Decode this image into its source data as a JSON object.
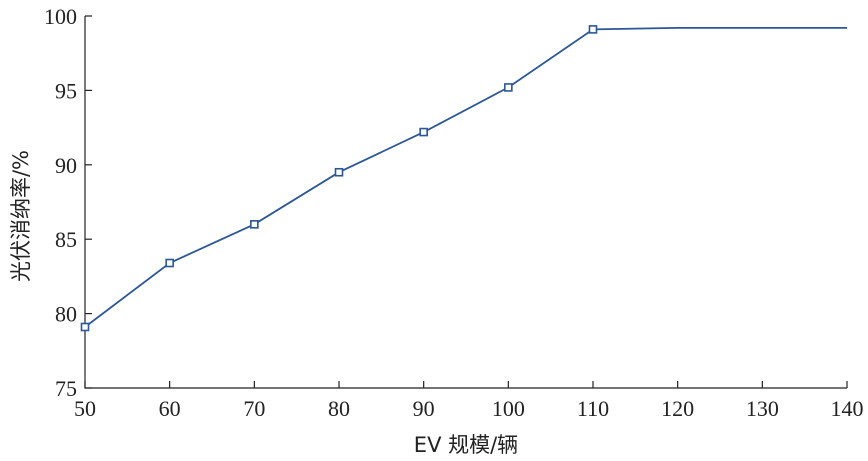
{
  "chart_data": {
    "type": "line",
    "title": "",
    "xlabel": "EV 规模/辆",
    "ylabel": "光伏消纳率/%",
    "xlim": [
      50,
      140
    ],
    "ylim": [
      75,
      100
    ],
    "xticks": [
      50,
      60,
      70,
      80,
      90,
      100,
      110,
      120,
      130,
      140
    ],
    "yticks": [
      75,
      80,
      85,
      90,
      95,
      100
    ],
    "grid": false,
    "series": [
      {
        "color": "#2b5797",
        "x": [
          50,
          60,
          70,
          80,
          90,
          100,
          110,
          120,
          140
        ],
        "y": [
          79.1,
          83.4,
          86.0,
          89.5,
          92.2,
          95.2,
          99.1,
          99.2,
          99.2
        ],
        "marker_x": [
          50,
          60,
          70,
          80,
          90,
          100,
          110
        ],
        "marker_y": [
          79.1,
          83.4,
          86.0,
          89.5,
          92.2,
          95.2,
          99.1
        ]
      }
    ]
  }
}
